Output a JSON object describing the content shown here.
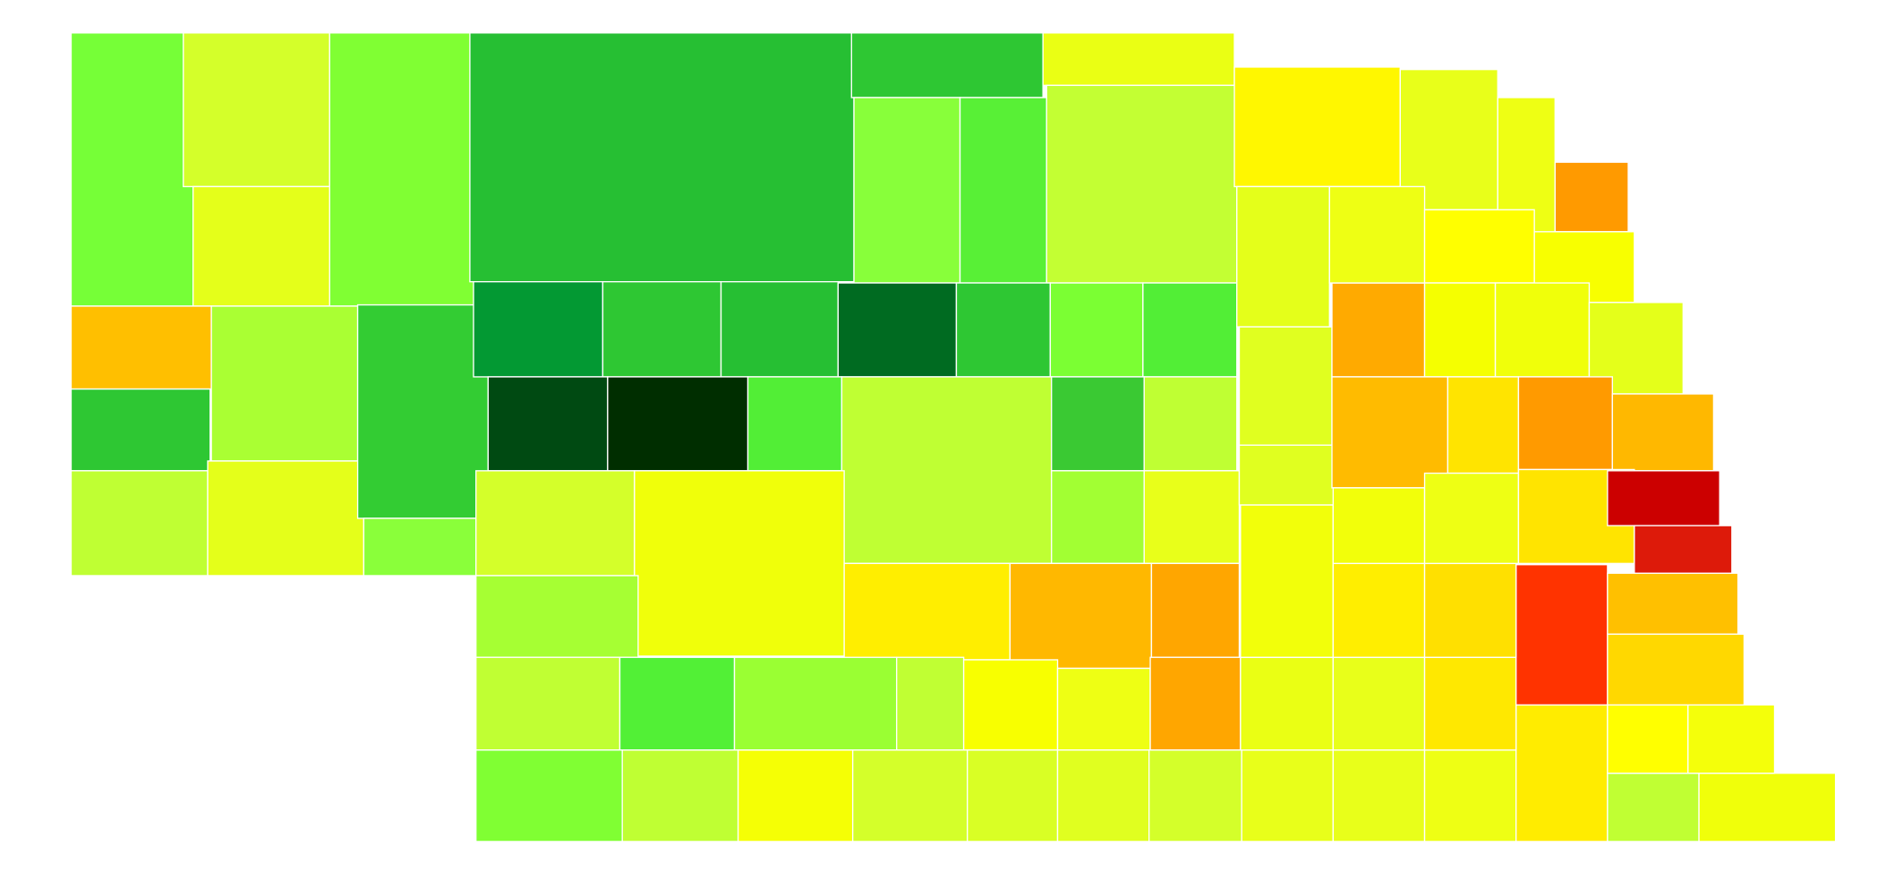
{
  "map": {
    "county_colors": [
      "#76ff37",
      "#d4ff2a",
      "#e4ff1a",
      "#80ff33",
      "#26bf33",
      "#2ec733",
      "#eaff14",
      "#88ff3a",
      "#58f036",
      "#c3ff33",
      "#fff700",
      "#e8ff1a",
      "#eeff14",
      "#ff9a00",
      "#ffbf00",
      "#2ec733",
      "#bfff33",
      "#aaff33",
      "#e4ff1a",
      "#33cc33",
      "#8aff3a",
      "#039933",
      "#2ec733",
      "#26bf33",
      "#006b21",
      "#2ec733",
      "#7bff33",
      "#52ee36",
      "#004a12",
      "#002e00",
      "#52ee36",
      "#bfff33",
      "#3ac933",
      "#bfff33",
      "#d4ff2a",
      "#f0ff0a",
      "#a2ff33",
      "#e8ff1a",
      "#a6ff33",
      "#ffee00",
      "#ffb800",
      "#ffa600",
      "#c0ff33",
      "#52f036",
      "#9aff33",
      "#c0ff33",
      "#f8ff00",
      "#eeff14",
      "#ffa600",
      "#80ff33",
      "#bfff33",
      "#f5ff05",
      "#d4ff2a",
      "#d9ff25",
      "#e0ff20",
      "#d4ff2a",
      "#e8ff1a",
      "#e8ff1a",
      "#eeff14",
      "#ffec00",
      "#c0ff33",
      "#f0ff0a",
      "#eaff14",
      "#e8ff1a",
      "#ffe800",
      "#ff3300",
      "#ffff00",
      "#f4ff0a",
      "#f2ff0a",
      "#ffee00",
      "#ffe000",
      "#ffc000",
      "#ffd800",
      "#e4ff1a",
      "#e0ff20",
      "#e0ff20",
      "#ffaa00",
      "#eeff14",
      "#ffff00",
      "#f8ff00",
      "#f5ff00",
      "#f0ff0a",
      "#e4ff1a",
      "#ffbb00",
      "#ffe400",
      "#ff9a00",
      "#ffb800",
      "#f2ff0a",
      "#eeff14",
      "#ffe400",
      "#cc0000",
      "#dd1a0a"
    ]
  }
}
